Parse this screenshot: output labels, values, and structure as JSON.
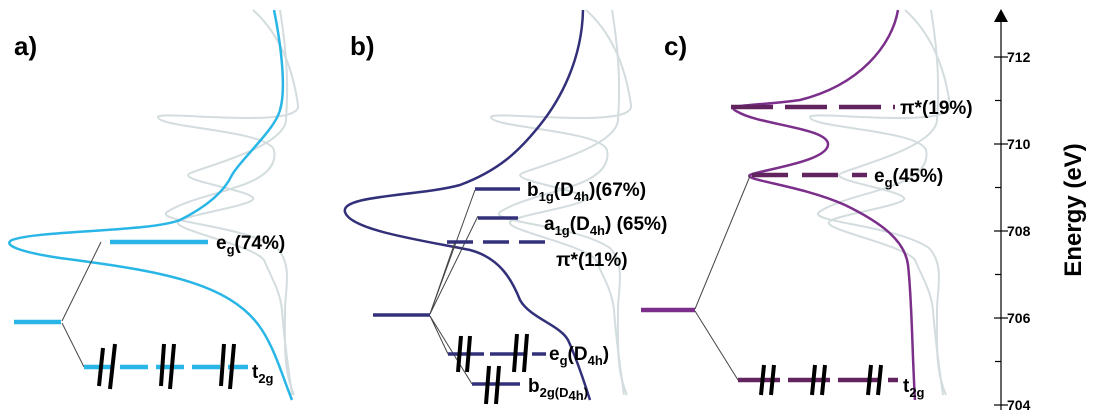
{
  "panels": [
    {
      "label": "a)",
      "color": "#29b6e6",
      "levels": [
        {
          "name": "e",
          "sub": "g",
          "suffix": "(74%)"
        },
        {
          "name": "t",
          "sub": "2g",
          "suffix": ""
        }
      ]
    },
    {
      "label": "b)",
      "color": "#33307a",
      "levels": [
        {
          "name": "b",
          "sub": "1g",
          "mid": "(D",
          "sub2": "4h",
          "suffix": ")(67%)"
        },
        {
          "name": "a",
          "sub": "1g",
          "mid": "(D",
          "sub2": "4h",
          "suffix": ") (65%)"
        },
        {
          "name": "π*(11%)"
        },
        {
          "name": "e",
          "sub": "g",
          "mid": "(D",
          "sub2": "4h",
          "suffix": ")"
        },
        {
          "name": "b",
          "sub": "2g(",
          "mid": "D",
          "sub2": "4h",
          "suffix": ")"
        }
      ]
    },
    {
      "label": "c)",
      "color": "#7b2f8a",
      "levels": [
        {
          "name": "π*(19%)"
        },
        {
          "name": "e",
          "sub": "g",
          "suffix": "(45%)"
        },
        {
          "name": "t",
          "sub": "2g",
          "suffix": ""
        }
      ]
    }
  ],
  "energy_axis": {
    "title": "Energy (eV)",
    "range": [
      703.8,
      712.6
    ],
    "major_ticks": [
      704,
      706,
      708,
      710,
      712
    ],
    "tick_labels": [
      "704",
      "706",
      "708",
      "710",
      "712"
    ],
    "minor_ticks": [
      705,
      707,
      709,
      711
    ]
  },
  "ghost_color": "#d3dcde"
}
